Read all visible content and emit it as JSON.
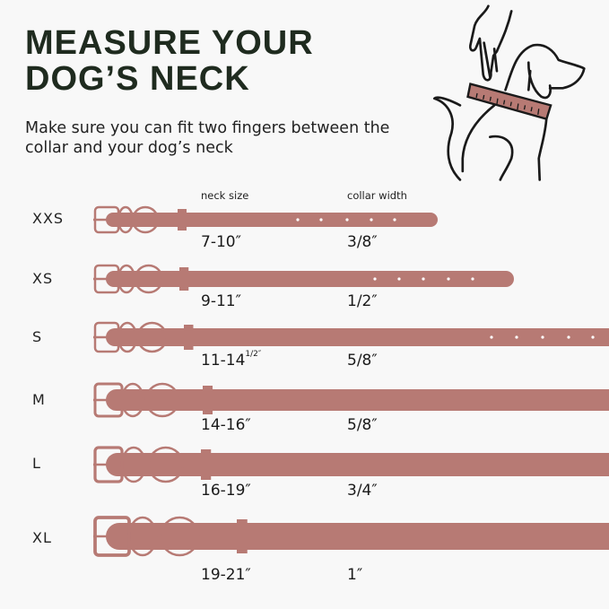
{
  "title_line1": "MEASURE YOUR",
  "title_line2": "DOG’S  NECK",
  "subtitle": "Make sure you can fit two fingers between the collar and your dog’s neck",
  "headers": {
    "neck_size": "neck size",
    "collar_width": "collar width"
  },
  "colors": {
    "collar": "#b77a74",
    "title": "#1f2b1f",
    "background": "#f8f8f8"
  },
  "illustration": "dog-with-measuring-collar-and-hand-icon",
  "sizes": [
    {
      "size": "XXS",
      "neck": "7-10″",
      "neck_sup": "",
      "width": "3/8″"
    },
    {
      "size": "XS",
      "neck": "9-11″",
      "neck_sup": "",
      "width": "1/2″"
    },
    {
      "size": "S",
      "neck": "11-14",
      "neck_sup": "1/2″",
      "width": "5/8″"
    },
    {
      "size": "M",
      "neck": "14-16″",
      "neck_sup": "",
      "width": "5/8″"
    },
    {
      "size": "L",
      "neck": "16-19″",
      "neck_sup": "",
      "width": "3/4″"
    },
    {
      "size": "XL",
      "neck": "19-21″",
      "neck_sup": "",
      "width": "1″"
    }
  ]
}
